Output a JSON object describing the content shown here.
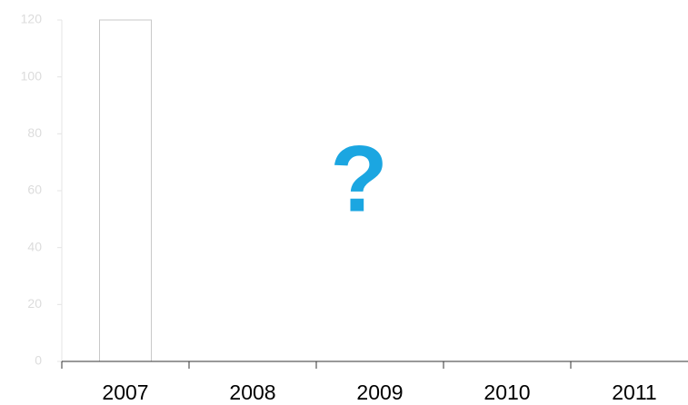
{
  "chart_data": {
    "type": "bar",
    "categories": [
      "2007",
      "2008",
      "2009",
      "2010",
      "2011"
    ],
    "values": [
      120,
      null,
      null,
      null,
      null
    ],
    "color": "#ffffff",
    "edgecolor": "#c8c8c8",
    "ylim": [
      0,
      120
    ],
    "yticks": [
      0,
      20,
      40,
      60,
      80,
      100,
      120
    ],
    "tick_label_color": "#dcdcdc",
    "annotation": {
      "text": "?",
      "color": "#1ba6e1"
    }
  }
}
